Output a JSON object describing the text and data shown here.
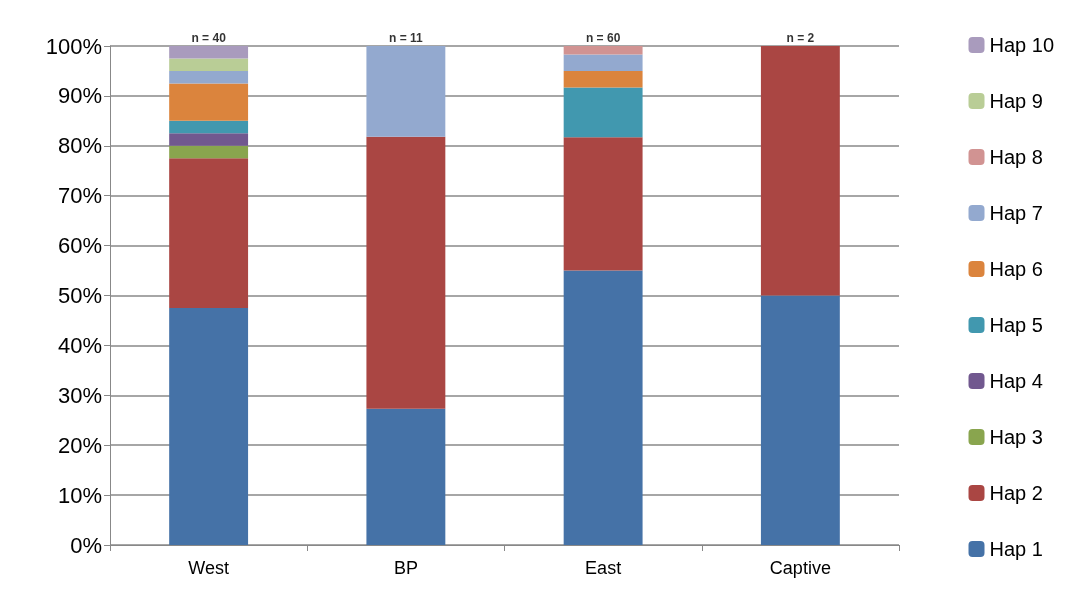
{
  "chart_data": {
    "type": "bar",
    "stacked": true,
    "categories": [
      "West",
      "BP",
      "East",
      "Captive"
    ],
    "series": [
      {
        "name": "Hap 1",
        "color": "#4572a7",
        "values": [
          47.5,
          27.3,
          55,
          50
        ]
      },
      {
        "name": "Hap 2",
        "color": "#aa4643",
        "values": [
          30,
          54.5,
          26.7,
          50
        ]
      },
      {
        "name": "Hap 3",
        "color": "#89a54e",
        "values": [
          2.5,
          0,
          0,
          0
        ]
      },
      {
        "name": "Hap 4",
        "color": "#71588f",
        "values": [
          2.5,
          0,
          0,
          0
        ]
      },
      {
        "name": "Hap 5",
        "color": "#4198af",
        "values": [
          2.5,
          0,
          10,
          0
        ]
      },
      {
        "name": "Hap 6",
        "color": "#db843d",
        "values": [
          7.5,
          0,
          3.3,
          0
        ]
      },
      {
        "name": "Hap 7",
        "color": "#93a9cf",
        "values": [
          2.5,
          18.2,
          3.3,
          0
        ]
      },
      {
        "name": "Hap 8",
        "color": "#d19392",
        "values": [
          0,
          0,
          1.7,
          0
        ]
      },
      {
        "name": "Hap 9",
        "color": "#b9cd96",
        "values": [
          2.5,
          0,
          0,
          0
        ]
      },
      {
        "name": "Hap 10",
        "color": "#a99bbd",
        "values": [
          2.5,
          0,
          0,
          0
        ]
      }
    ],
    "ylim": [
      0,
      100
    ],
    "yticks": [
      {
        "value": 0,
        "label": "0%"
      },
      {
        "value": 10,
        "label": "10%"
      },
      {
        "value": 20,
        "label": "20%"
      },
      {
        "value": 30,
        "label": "30%"
      },
      {
        "value": 40,
        "label": "40%"
      },
      {
        "value": 50,
        "label": "50%"
      },
      {
        "value": 60,
        "label": "60%"
      },
      {
        "value": 70,
        "label": "70%"
      },
      {
        "value": 80,
        "label": "80%"
      },
      {
        "value": 90,
        "label": "90%"
      },
      {
        "value": 100,
        "label": "100%"
      }
    ],
    "grid": "y",
    "legend": "right",
    "annotations": [
      {
        "text": "n = 40",
        "x": "West",
        "y": 100
      },
      {
        "text": "n = 11",
        "x": "BP",
        "y": 100
      },
      {
        "text": "n = 60",
        "x": "East",
        "y": 100
      },
      {
        "text": "n = 2",
        "x": "Captive",
        "y": 100
      }
    ]
  }
}
